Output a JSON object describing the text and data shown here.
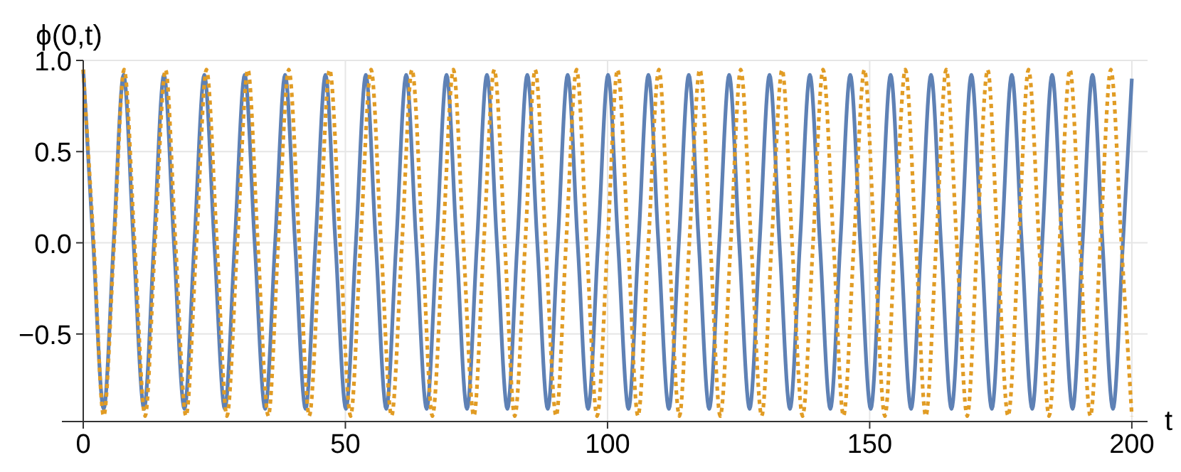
{
  "chart_data": {
    "type": "line",
    "xlabel": "t",
    "ylabel": "ϕ(0,t)",
    "xlim": [
      0,
      203
    ],
    "ylim": [
      -0.98,
      1.0
    ],
    "xticks": [
      0,
      50,
      100,
      150,
      200
    ],
    "yticks": [
      {
        "value": -0.5,
        "label": "−0.5"
      },
      {
        "value": 0,
        "label": "0.0"
      },
      {
        "value": 0.5,
        "label": "0.5"
      },
      {
        "value": 1.0,
        "label": "1.0"
      }
    ],
    "grid": true,
    "series": [
      {
        "color": "#5e81b5",
        "line_style": "solid",
        "x": [
          0,
          1.9,
          3.9,
          5.8,
          7.7,
          9.6,
          11.6,
          13.5,
          15.4,
          17.3,
          19.3,
          21.2,
          23.1,
          25.0,
          27.0,
          28.9,
          30.8,
          32.7,
          34.7,
          36.6,
          38.5,
          40.4,
          42.4,
          44.3,
          46.2,
          48.1,
          50.1,
          52.0,
          53.9,
          55.8,
          57.8,
          59.7,
          61.6,
          63.5,
          65.5,
          67.4,
          69.3,
          71.2,
          73.2,
          75.1,
          77.0,
          78.9,
          80.9,
          82.8,
          84.7,
          86.6,
          88.6,
          90.5,
          92.4,
          94.3,
          96.3,
          98.2,
          100.1,
          102.0,
          104.0,
          105.9,
          107.8,
          109.7,
          111.7,
          113.6,
          115.5,
          117.4,
          119.4,
          121.3,
          123.2,
          125.1,
          127.1,
          129.0,
          130.9,
          132.8,
          134.8,
          136.7,
          138.6,
          140.5,
          142.5,
          144.4,
          146.3,
          148.2,
          150.2,
          152.1,
          154.0,
          155.9,
          157.9,
          159.8,
          161.7,
          163.6,
          165.6,
          167.5,
          169.4,
          171.3,
          173.3,
          175.2,
          177.1,
          179.0,
          181.0,
          182.9,
          184.8,
          186.7,
          188.7,
          190.6,
          192.5,
          194.4,
          196.4,
          198.3,
          200
        ],
        "values": [
          0.95,
          0,
          -0.91,
          0,
          0.92,
          0,
          -0.91,
          0,
          0.92,
          0,
          -0.91,
          0,
          0.92,
          0,
          -0.91,
          0,
          0.92,
          0,
          -0.91,
          0,
          0.92,
          0,
          -0.91,
          0,
          0.92,
          0,
          -0.91,
          0,
          0.92,
          0,
          -0.91,
          0,
          0.92,
          0,
          -0.91,
          0,
          0.92,
          0,
          -0.91,
          0,
          0.92,
          0,
          -0.91,
          0,
          0.92,
          0,
          -0.91,
          0,
          0.92,
          0,
          -0.91,
          0,
          0.92,
          0,
          -0.91,
          0,
          0.92,
          0,
          -0.91,
          0,
          0.92,
          0,
          -0.91,
          0,
          0.92,
          0,
          -0.91,
          0,
          0.92,
          0,
          -0.91,
          0,
          0.92,
          0,
          -0.91,
          0,
          0.92,
          0,
          -0.91,
          0,
          0.92,
          0,
          -0.91,
          0,
          0.92,
          0,
          -0.91,
          0,
          0.92,
          0,
          -0.91,
          0,
          0.92,
          0,
          -0.91,
          0,
          0.92,
          0,
          -0.91,
          0,
          0.92,
          0,
          -0.91,
          0,
          0.9
        ]
      },
      {
        "color": "#e19c24",
        "line_style": "dotted",
        "x": [
          0,
          2.0,
          3.9,
          5.9,
          7.8,
          9.8,
          11.8,
          13.7,
          15.7,
          17.6,
          19.6,
          21.6,
          23.5,
          25.5,
          27.4,
          29.4,
          31.4,
          33.3,
          35.3,
          37.2,
          39.2,
          41.2,
          43.1,
          45.1,
          47.0,
          49.0,
          51.0,
          52.9,
          54.9,
          56.8,
          58.8,
          60.8,
          62.7,
          64.7,
          66.6,
          68.6,
          70.6,
          72.5,
          74.5,
          76.4,
          78.4,
          80.4,
          82.3,
          84.3,
          86.2,
          88.2,
          90.2,
          92.1,
          94.1,
          96.0,
          98.0,
          100.0,
          101.9,
          103.9,
          105.8,
          107.8,
          109.8,
          111.7,
          113.7,
          115.6,
          117.6,
          119.6,
          121.5,
          123.5,
          125.4,
          127.4,
          129.4,
          131.3,
          133.3,
          135.2,
          137.2,
          139.2,
          141.1,
          143.1,
          145.0,
          147.0,
          149.0,
          150.9,
          152.9,
          154.8,
          156.8,
          158.8,
          160.7,
          162.7,
          164.6,
          166.6,
          168.6,
          170.5,
          172.5,
          174.4,
          176.4,
          178.4,
          180.3,
          182.3,
          184.2,
          186.2,
          188.2,
          190.1,
          192.1,
          194.0,
          196.0,
          198.0,
          200
        ],
        "values": [
          0.95,
          0,
          -0.95,
          0,
          0.95,
          0,
          -0.95,
          0,
          0.95,
          0,
          -0.95,
          0,
          0.95,
          0,
          -0.95,
          0,
          0.95,
          0,
          -0.95,
          0,
          0.95,
          0,
          -0.95,
          0,
          0.95,
          0,
          -0.95,
          0,
          0.95,
          0,
          -0.95,
          0,
          0.95,
          0,
          -0.95,
          0,
          0.95,
          0,
          -0.95,
          0,
          0.95,
          0,
          -0.95,
          0,
          0.95,
          0,
          -0.95,
          0,
          0.95,
          0,
          -0.95,
          0,
          0.95,
          0,
          -0.95,
          0,
          0.95,
          0,
          -0.95,
          0,
          0.95,
          0,
          -0.95,
          0,
          0.95,
          0,
          -0.95,
          0,
          0.95,
          0,
          -0.95,
          0,
          0.95,
          0,
          -0.95,
          0,
          0.95,
          0,
          -0.95,
          0,
          0.95,
          0,
          -0.95,
          0,
          0.95,
          0,
          -0.95,
          0,
          0.95,
          0,
          -0.95,
          0,
          0.95,
          0,
          -0.95,
          0,
          0.95,
          0,
          -0.95,
          0,
          0.95,
          0,
          -0.95
        ]
      }
    ]
  }
}
